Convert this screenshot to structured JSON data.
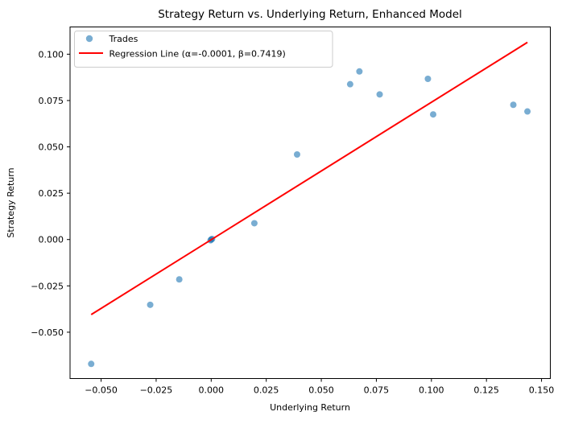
{
  "chart_data": {
    "type": "scatter",
    "title": "Strategy Return vs. Underlying Return, Enhanced Model",
    "xlabel": "Underlying Return",
    "ylabel": "Strategy Return",
    "xlim": [
      -0.0641,
      0.154
    ],
    "ylim": [
      -0.075,
      0.1147
    ],
    "x_ticks": [
      -0.05,
      -0.025,
      0.0,
      0.025,
      0.05,
      0.075,
      0.1,
      0.125,
      0.15
    ],
    "y_ticks": [
      -0.05,
      -0.025,
      0.0,
      0.025,
      0.05,
      0.075,
      0.1
    ],
    "grid": false,
    "legend_position": "upper left",
    "series": [
      {
        "name": "Trades",
        "type": "scatter",
        "color": "#1f77b4",
        "alpha": 0.6,
        "points": [
          [
            -0.0545,
            -0.0671
          ],
          [
            -0.0277,
            -0.0352
          ],
          [
            -0.0145,
            -0.0215
          ],
          [
            0.0,
            0.0
          ],
          [
            -0.0003,
            -0.0004
          ],
          [
            0.0004,
            0.0003
          ],
          [
            0.0196,
            0.0088
          ],
          [
            0.039,
            0.0459
          ],
          [
            0.0631,
            0.0838
          ],
          [
            0.0673,
            0.0907
          ],
          [
            0.0765,
            0.0783
          ],
          [
            0.0984,
            0.0867
          ],
          [
            0.1008,
            0.0675
          ],
          [
            0.1372,
            0.0727
          ],
          [
            0.1436,
            0.0691
          ]
        ]
      },
      {
        "name": "Regression Line (α=-0.0001, β=0.7419)",
        "type": "line",
        "color": "#ff0000",
        "alpha": 1.0,
        "intercept": -0.0001,
        "slope": 0.7419,
        "points": [
          [
            -0.0545,
            -0.0405
          ],
          [
            0.1436,
            0.1064
          ]
        ]
      }
    ]
  }
}
